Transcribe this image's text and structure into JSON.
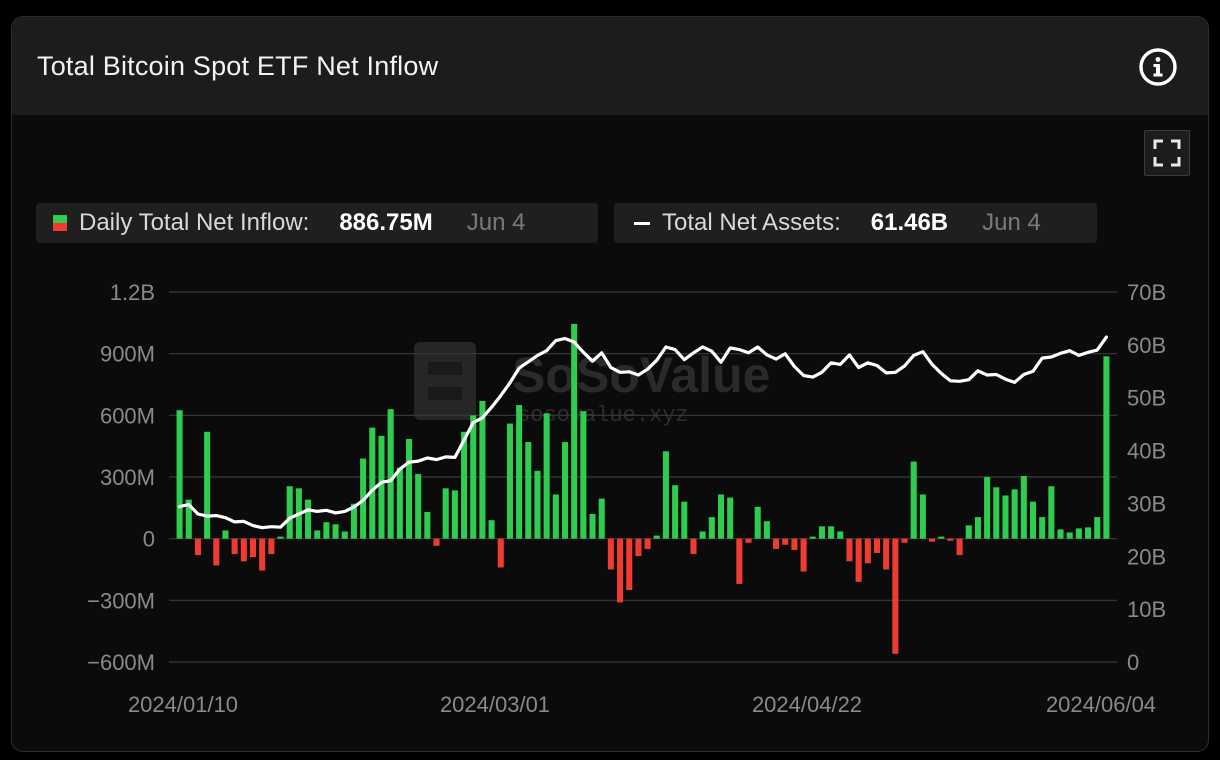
{
  "header": {
    "title": "Total Bitcoin Spot ETF Net Inflow"
  },
  "icons": {
    "info": "info-circle-icon",
    "expand": "fullscreen-expand-icon"
  },
  "legend": {
    "inflow": {
      "label": "Daily Total Net Inflow:",
      "value": "886.75M",
      "date": "Jun 4"
    },
    "assets": {
      "label": "Total Net Assets:",
      "value": "61.46B",
      "date": "Jun 4"
    }
  },
  "watermark": {
    "brand": "SoSoValue",
    "url": "sosovalue.xyz"
  },
  "colors": {
    "positive": "#2ecc4f",
    "negative": "#ef3b32",
    "line": "#ffffff",
    "grid": "#3a3a3a",
    "background": "#0b0b0b"
  },
  "chart_data": {
    "type": "bar",
    "title": "Total Bitcoin Spot ETF Net Inflow",
    "x_tick_labels": [
      "2024/01/10",
      "2024/03/01",
      "2024/04/22",
      "2024/06/04"
    ],
    "y_left_ticks": [
      "1.2B",
      "900M",
      "600M",
      "300M",
      "0",
      "−300M",
      "−600M"
    ],
    "y_right_ticks": [
      "70B",
      "60B",
      "50B",
      "40B",
      "30B",
      "20B",
      "10B",
      "0"
    ],
    "y_left_range": [
      -600,
      1200
    ],
    "y_left_unit": "M",
    "y_right_range": [
      0,
      70
    ],
    "y_right_unit": "B",
    "grid": true,
    "legend_position": "top-left",
    "series": [
      {
        "name": "Daily Total Net Inflow",
        "kind": "bar",
        "axis": "left",
        "values": [
          625,
          190,
          -80,
          520,
          -130,
          40,
          -75,
          -110,
          -90,
          -155,
          -75,
          10,
          255,
          245,
          190,
          40,
          80,
          70,
          35,
          170,
          390,
          540,
          500,
          630,
          345,
          485,
          315,
          130,
          -35,
          245,
          235,
          520,
          600,
          670,
          90,
          -140,
          560,
          650,
          470,
          330,
          610,
          215,
          470,
          1045,
          620,
          120,
          195,
          -150,
          -310,
          -250,
          -85,
          -50,
          15,
          425,
          260,
          180,
          -75,
          35,
          105,
          215,
          200,
          -220,
          -20,
          155,
          85,
          -50,
          -30,
          -55,
          -160,
          10,
          60,
          60,
          35,
          -110,
          -210,
          -120,
          -70,
          -150,
          -560,
          -20,
          375,
          215,
          -15,
          10,
          -10,
          -80,
          65,
          105,
          300,
          250,
          210,
          240,
          305,
          180,
          105,
          255,
          45,
          30,
          50,
          55,
          105,
          887
        ]
      },
      {
        "name": "Total Net Assets",
        "kind": "line",
        "axis": "right",
        "values": [
          29.4,
          29.8,
          28.0,
          27.6,
          27.7,
          27.3,
          26.5,
          26.6,
          25.8,
          25.4,
          25.6,
          25.5,
          27.2,
          28.0,
          28.8,
          28.5,
          28.7,
          28.2,
          28.5,
          29.3,
          30.6,
          32.5,
          34.0,
          34.3,
          36.5,
          37.8,
          38.0,
          38.6,
          38.3,
          38.8,
          38.7,
          42.0,
          45.3,
          46.2,
          48.2,
          50.4,
          52.8,
          55.6,
          56.8,
          58.0,
          58.9,
          60.8,
          61.2,
          60.5,
          58.6,
          56.9,
          58.5,
          55.7,
          54.8,
          54.9,
          54.3,
          55.4,
          57.1,
          59.6,
          59.1,
          57.2,
          58.5,
          59.6,
          58.8,
          56.7,
          59.4,
          59.1,
          58.5,
          59.6,
          58.1,
          57.3,
          58.3,
          55.9,
          54.2,
          53.9,
          54.8,
          56.6,
          56.3,
          58.1,
          55.7,
          56.6,
          56.1,
          54.7,
          54.8,
          56.0,
          58.0,
          58.7,
          56.3,
          54.6,
          53.2,
          53.1,
          53.4,
          55.1,
          54.3,
          54.4,
          53.5,
          52.9,
          54.4,
          55.0,
          57.5,
          57.7,
          58.4,
          58.9,
          58.0,
          58.6,
          59.0,
          61.46
        ]
      }
    ]
  }
}
